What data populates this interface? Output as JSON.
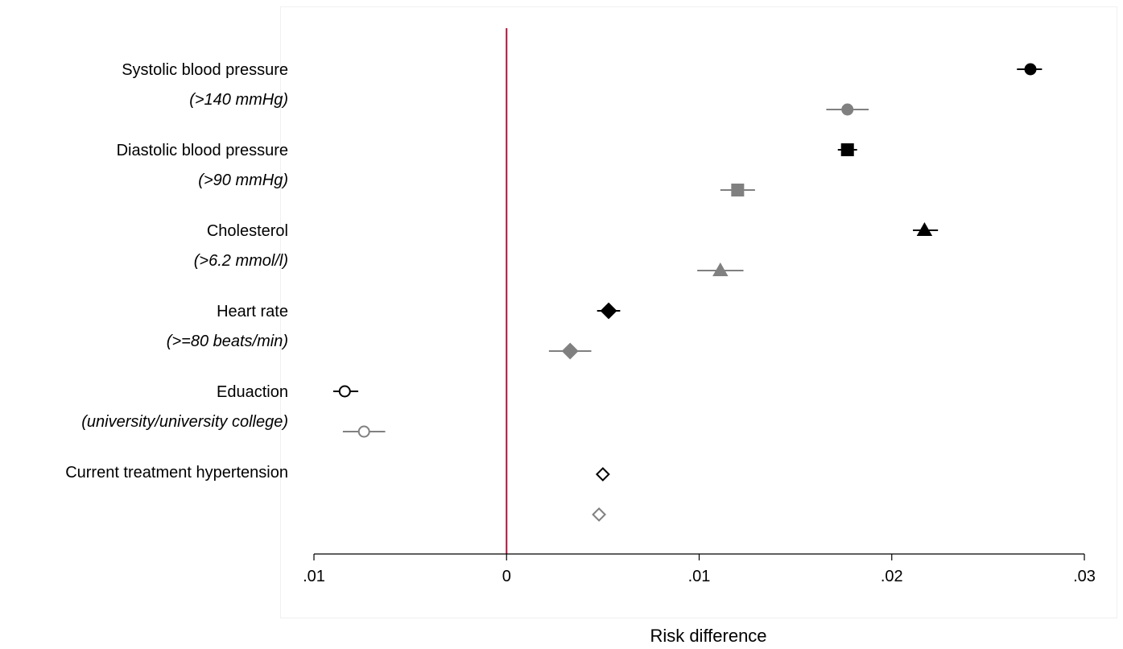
{
  "chart_data": {
    "type": "scatter",
    "subtype": "forest-plot",
    "xlabel": "Risk difference",
    "xlim": [
      -0.01,
      0.03
    ],
    "xticks": [
      {
        "value": -0.01,
        "label": ".01"
      },
      {
        "value": 0,
        "label": "0"
      },
      {
        "value": 0.01,
        "label": ".01"
      },
      {
        "value": 0.02,
        "label": ".02"
      },
      {
        "value": 0.03,
        "label": ".03"
      }
    ],
    "reference_line": {
      "value": 0,
      "color": "#b0103a"
    },
    "colors": {
      "dark": "#000000",
      "light": "#808080"
    },
    "rows": [
      {
        "label": "Systolic blood pressure",
        "sublabel": "(>140 mmHg)",
        "marker": "circle",
        "filled": true,
        "estimates": [
          {
            "shade": "dark",
            "value": 0.0272,
            "lo": 0.0265,
            "hi": 0.0278
          },
          {
            "shade": "light",
            "value": 0.0177,
            "lo": 0.0166,
            "hi": 0.0188
          }
        ]
      },
      {
        "label": "Diastolic blood pressure",
        "sublabel": "(>90 mmHg)",
        "marker": "square",
        "filled": true,
        "estimates": [
          {
            "shade": "dark",
            "value": 0.0177,
            "lo": 0.0172,
            "hi": 0.0182
          },
          {
            "shade": "light",
            "value": 0.012,
            "lo": 0.0111,
            "hi": 0.0129
          }
        ]
      },
      {
        "label": "Cholesterol",
        "sublabel": "(>6.2 mmol/l)",
        "marker": "triangle",
        "filled": true,
        "estimates": [
          {
            "shade": "dark",
            "value": 0.0217,
            "lo": 0.0211,
            "hi": 0.0224
          },
          {
            "shade": "light",
            "value": 0.0111,
            "lo": 0.0099,
            "hi": 0.0123
          }
        ]
      },
      {
        "label": "Heart rate",
        "sublabel": "(>=80 beats/min)",
        "marker": "diamond",
        "filled": true,
        "estimates": [
          {
            "shade": "dark",
            "value": 0.0053,
            "lo": 0.0047,
            "hi": 0.0059
          },
          {
            "shade": "light",
            "value": 0.0033,
            "lo": 0.0022,
            "hi": 0.0044
          }
        ]
      },
      {
        "label": "Eduaction",
        "sublabel": "(university/university college)",
        "marker": "circle",
        "filled": false,
        "estimates": [
          {
            "shade": "dark",
            "value": -0.0084,
            "lo": -0.009,
            "hi": -0.0077
          },
          {
            "shade": "light",
            "value": -0.0074,
            "lo": -0.0085,
            "hi": -0.0063
          }
        ]
      },
      {
        "label": "Current treatment hypertension",
        "sublabel": "",
        "marker": "diamond",
        "filled": false,
        "estimates": [
          {
            "shade": "dark",
            "value": 0.005,
            "lo": 0.0047,
            "hi": 0.0053
          },
          {
            "shade": "light",
            "value": 0.0048,
            "lo": 0.0045,
            "hi": 0.0051
          }
        ]
      }
    ]
  }
}
